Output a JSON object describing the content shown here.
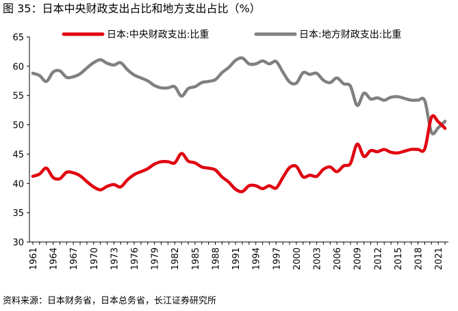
{
  "figure_title": "图 35：日本中央财政支出占比和地方支出占比（%）",
  "source": "资料来源：日本财务省，日本总务省，长江证券研究所",
  "colors": {
    "central": "#e0000f",
    "local": "#808080"
  },
  "chart_data": {
    "type": "line",
    "title": "",
    "xlabel": "",
    "ylabel": "",
    "ylim": [
      30,
      65
    ],
    "yticks": [
      30,
      35,
      40,
      45,
      50,
      55,
      60,
      65
    ],
    "xlim": [
      1960.5,
      2022.5
    ],
    "xticks": [
      1961,
      1964,
      1967,
      1970,
      1973,
      1976,
      1979,
      1982,
      1985,
      1988,
      1991,
      1994,
      1997,
      2000,
      2003,
      2006,
      2009,
      2012,
      2015,
      2018,
      2021
    ],
    "grid": false,
    "legend": "top",
    "x": [
      1961,
      1962,
      1963,
      1964,
      1965,
      1966,
      1967,
      1968,
      1969,
      1970,
      1971,
      1972,
      1973,
      1974,
      1975,
      1976,
      1977,
      1978,
      1979,
      1980,
      1981,
      1982,
      1983,
      1984,
      1985,
      1986,
      1987,
      1988,
      1989,
      1990,
      1991,
      1992,
      1993,
      1994,
      1995,
      1996,
      1997,
      1998,
      1999,
      2000,
      2001,
      2002,
      2003,
      2004,
      2005,
      2006,
      2007,
      2008,
      2009,
      2010,
      2011,
      2012,
      2013,
      2014,
      2015,
      2016,
      2017,
      2018,
      2019,
      2020,
      2021,
      2022
    ],
    "series": [
      {
        "name": "日本:中央财政支出:比重",
        "color": "#e0000f",
        "values": [
          41.2,
          41.6,
          42.6,
          41.0,
          40.8,
          41.9,
          41.8,
          41.3,
          40.3,
          39.4,
          38.9,
          39.5,
          39.8,
          39.4,
          40.6,
          41.5,
          42.0,
          42.5,
          43.3,
          43.7,
          43.7,
          43.5,
          45.1,
          43.8,
          43.5,
          42.8,
          42.6,
          42.3,
          41.1,
          40.2,
          39.0,
          38.6,
          39.6,
          39.6,
          39.1,
          39.6,
          39.2,
          41.0,
          42.7,
          42.9,
          41.1,
          41.4,
          41.2,
          42.4,
          42.8,
          42.0,
          43.0,
          43.4,
          46.7,
          44.6,
          45.6,
          45.4,
          45.8,
          45.3,
          45.2,
          45.5,
          45.8,
          45.8,
          45.9,
          51.3,
          50.5,
          49.4
        ]
      },
      {
        "name": "日本:地方财政支出:比重",
        "color": "#808080",
        "values": [
          58.8,
          58.4,
          57.4,
          59.0,
          59.2,
          58.1,
          58.2,
          58.7,
          59.7,
          60.6,
          61.1,
          60.5,
          60.2,
          60.6,
          59.4,
          58.5,
          58.0,
          57.5,
          56.7,
          56.3,
          56.3,
          56.5,
          54.9,
          56.2,
          56.5,
          57.2,
          57.4,
          57.7,
          58.9,
          59.8,
          61.0,
          61.4,
          60.4,
          60.4,
          60.9,
          60.4,
          60.8,
          59.0,
          57.3,
          57.1,
          58.9,
          58.6,
          58.8,
          57.6,
          57.2,
          58.0,
          57.0,
          56.6,
          53.3,
          55.4,
          54.4,
          54.6,
          54.2,
          54.7,
          54.8,
          54.5,
          54.2,
          54.2,
          54.1,
          48.7,
          49.5,
          50.6
        ]
      }
    ]
  }
}
